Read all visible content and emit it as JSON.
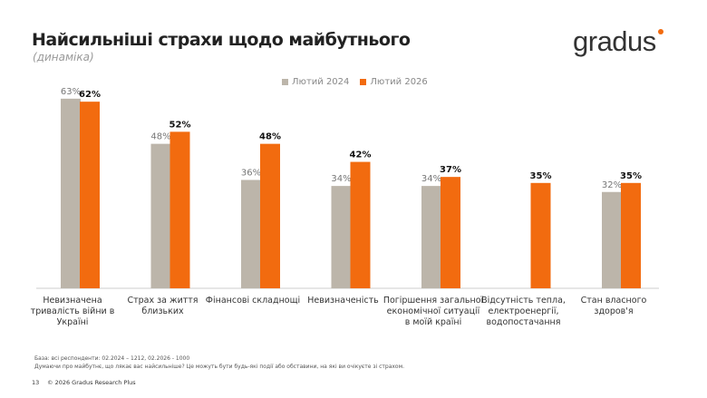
{
  "header": {
    "title": "Найсильніші страхи щодо майбутнього",
    "subtitle": "(динаміка)",
    "logo": "gradus"
  },
  "colors": {
    "series1": "#bcb5aa",
    "series2": "#f26b0f"
  },
  "chart_data": {
    "type": "bar",
    "categories": [
      "Невизначена тривалість війни в Україні",
      "Страх за життя близьких",
      "Фінансові складнощі",
      "Невизначеність",
      "Погіршення загальної економічної ситуації в моїй країні",
      "Відсутність тепла, електроенергії, водопостачання",
      "Стан власного здоров'я"
    ],
    "series": [
      {
        "name": "Лютий 2024",
        "values": [
          63,
          48,
          36,
          34,
          34,
          null,
          32
        ]
      },
      {
        "name": "Лютий 2026",
        "values": [
          62,
          52,
          48,
          42,
          37,
          35,
          35
        ]
      }
    ],
    "value_suffix": "%",
    "legend": "top-center",
    "grid": false
  },
  "footer": {
    "base": "База: всі респонденти: 02.2024 – 1212, 02.2026 - 1000",
    "question": "Думаючи про майбутнє, що лякає вас найсильніше? Це можуть бути будь-які події або обставини, на які ви очікуєте зі страхом.",
    "page": "13",
    "copyright": "© 2026 Gradus Research Plus"
  }
}
